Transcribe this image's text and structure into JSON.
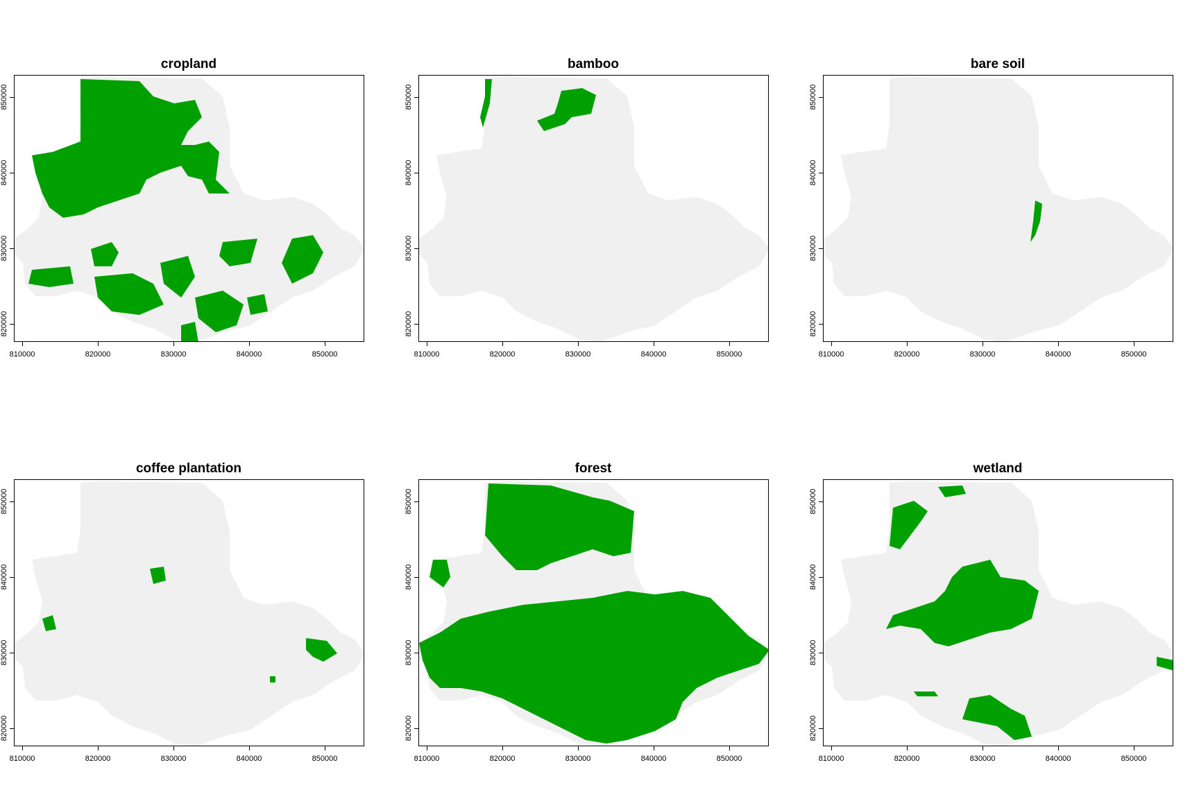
{
  "colors": {
    "region": "#f0f0f0",
    "class": "#00a000",
    "frame": "#000000"
  },
  "x_ticks": [
    "810000",
    "820000",
    "830000",
    "840000",
    "850000"
  ],
  "y_ticks": [
    "850000",
    "840000",
    "830000",
    "820000"
  ],
  "panels": [
    {
      "title": "cropland"
    },
    {
      "title": "bamboo"
    },
    {
      "title": "bare soil"
    },
    {
      "title": "coffee plantation"
    },
    {
      "title": "forest"
    },
    {
      "title": "wetland"
    }
  ]
}
